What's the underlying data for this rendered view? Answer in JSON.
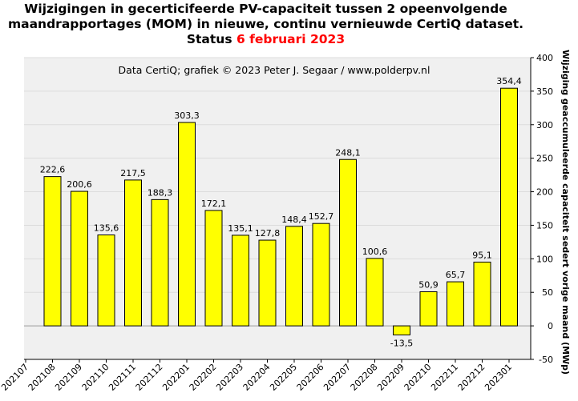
{
  "chart_data": {
    "type": "bar",
    "title_main": "Wijzigingen in gecerticifeerde PV-capaciteit tussen 2 opeenvolgende maandrapportages (MOM) in nieuwe, continu vernieuwde CertiQ dataset. Status",
    "title_highlight": "6 februari 2023",
    "annotation": "Data CertiQ; grafiek © 2023 Peter J. Segaar / www.polderpv.nl",
    "ylabel": "Wijziging geaccumuleerde capaciteit sedert vorige maand (MWp)",
    "ylim": [
      -50,
      400
    ],
    "yticks": [
      -50,
      0,
      50,
      100,
      150,
      200,
      250,
      300,
      350,
      400
    ],
    "y_axis_position": "right",
    "grid": true,
    "categories": [
      "202107",
      "202108",
      "202109",
      "202110",
      "202111",
      "202112",
      "202201",
      "202202",
      "202203",
      "202204",
      "202205",
      "202206",
      "202207",
      "202208",
      "202209",
      "202210",
      "202211",
      "202212",
      "202301"
    ],
    "values": [
      null,
      222.6,
      200.6,
      135.6,
      217.5,
      188.3,
      303.3,
      172.1,
      135.1,
      127.8,
      148.4,
      152.7,
      248.1,
      100.6,
      -13.5,
      50.9,
      65.7,
      95.1,
      354.4
    ],
    "value_labels": [
      "",
      "222,6",
      "200,6",
      "135,6",
      "217,5",
      "188,3",
      "303,3",
      "172,1",
      "135,1",
      "127,8",
      "148,4",
      "152,7",
      "248,1",
      "100,6",
      "-13,5",
      "50,9",
      "65,7",
      "95,1",
      "354,4"
    ],
    "bar_color": "#ffff00",
    "bar_edge_color": "#000000",
    "highlight_color": "#ff0000",
    "plot_background": "#f0f0f0"
  }
}
